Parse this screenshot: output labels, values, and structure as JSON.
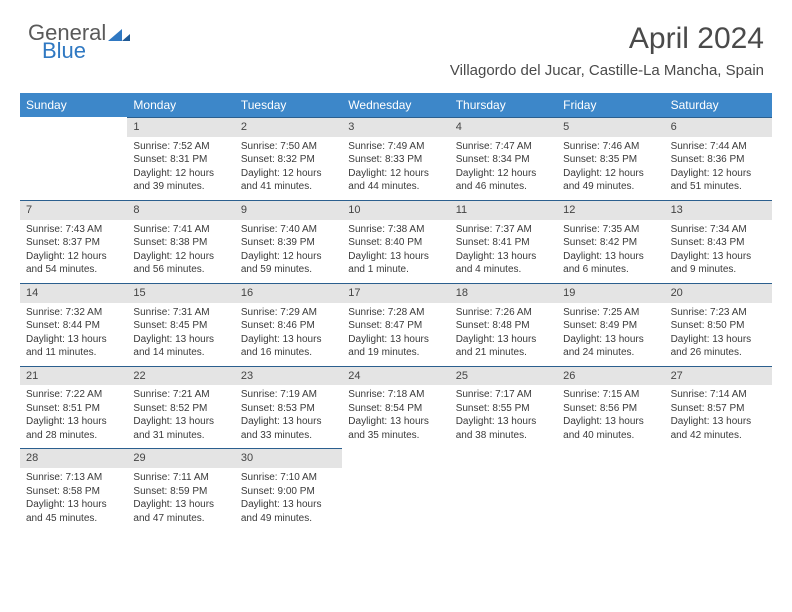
{
  "brand": {
    "general": "General",
    "blue": "Blue"
  },
  "title": "April 2024",
  "location": "Villagordo del Jucar, Castille-La Mancha, Spain",
  "day_names": [
    "Sunday",
    "Monday",
    "Tuesday",
    "Wednesday",
    "Thursday",
    "Friday",
    "Saturday"
  ],
  "colors": {
    "header_bg": "#3d87c9",
    "header_text": "#ffffff",
    "numrow_bg": "#e4e4e4",
    "numrow_border": "#2b5f8e",
    "text": "#3a3a3a",
    "brand_gray": "#5a5a5a",
    "brand_blue": "#2f78c2"
  },
  "typography": {
    "title_fontsize": 30,
    "location_fontsize": 15,
    "dayheader_fontsize": 12,
    "cell_fontsize": 10
  },
  "weeks": [
    [
      {
        "n": "",
        "sr": "",
        "ss": "",
        "dl": ""
      },
      {
        "n": "1",
        "sr": "Sunrise: 7:52 AM",
        "ss": "Sunset: 8:31 PM",
        "dl": "Daylight: 12 hours and 39 minutes."
      },
      {
        "n": "2",
        "sr": "Sunrise: 7:50 AM",
        "ss": "Sunset: 8:32 PM",
        "dl": "Daylight: 12 hours and 41 minutes."
      },
      {
        "n": "3",
        "sr": "Sunrise: 7:49 AM",
        "ss": "Sunset: 8:33 PM",
        "dl": "Daylight: 12 hours and 44 minutes."
      },
      {
        "n": "4",
        "sr": "Sunrise: 7:47 AM",
        "ss": "Sunset: 8:34 PM",
        "dl": "Daylight: 12 hours and 46 minutes."
      },
      {
        "n": "5",
        "sr": "Sunrise: 7:46 AM",
        "ss": "Sunset: 8:35 PM",
        "dl": "Daylight: 12 hours and 49 minutes."
      },
      {
        "n": "6",
        "sr": "Sunrise: 7:44 AM",
        "ss": "Sunset: 8:36 PM",
        "dl": "Daylight: 12 hours and 51 minutes."
      }
    ],
    [
      {
        "n": "7",
        "sr": "Sunrise: 7:43 AM",
        "ss": "Sunset: 8:37 PM",
        "dl": "Daylight: 12 hours and 54 minutes."
      },
      {
        "n": "8",
        "sr": "Sunrise: 7:41 AM",
        "ss": "Sunset: 8:38 PM",
        "dl": "Daylight: 12 hours and 56 minutes."
      },
      {
        "n": "9",
        "sr": "Sunrise: 7:40 AM",
        "ss": "Sunset: 8:39 PM",
        "dl": "Daylight: 12 hours and 59 minutes."
      },
      {
        "n": "10",
        "sr": "Sunrise: 7:38 AM",
        "ss": "Sunset: 8:40 PM",
        "dl": "Daylight: 13 hours and 1 minute."
      },
      {
        "n": "11",
        "sr": "Sunrise: 7:37 AM",
        "ss": "Sunset: 8:41 PM",
        "dl": "Daylight: 13 hours and 4 minutes."
      },
      {
        "n": "12",
        "sr": "Sunrise: 7:35 AM",
        "ss": "Sunset: 8:42 PM",
        "dl": "Daylight: 13 hours and 6 minutes."
      },
      {
        "n": "13",
        "sr": "Sunrise: 7:34 AM",
        "ss": "Sunset: 8:43 PM",
        "dl": "Daylight: 13 hours and 9 minutes."
      }
    ],
    [
      {
        "n": "14",
        "sr": "Sunrise: 7:32 AM",
        "ss": "Sunset: 8:44 PM",
        "dl": "Daylight: 13 hours and 11 minutes."
      },
      {
        "n": "15",
        "sr": "Sunrise: 7:31 AM",
        "ss": "Sunset: 8:45 PM",
        "dl": "Daylight: 13 hours and 14 minutes."
      },
      {
        "n": "16",
        "sr": "Sunrise: 7:29 AM",
        "ss": "Sunset: 8:46 PM",
        "dl": "Daylight: 13 hours and 16 minutes."
      },
      {
        "n": "17",
        "sr": "Sunrise: 7:28 AM",
        "ss": "Sunset: 8:47 PM",
        "dl": "Daylight: 13 hours and 19 minutes."
      },
      {
        "n": "18",
        "sr": "Sunrise: 7:26 AM",
        "ss": "Sunset: 8:48 PM",
        "dl": "Daylight: 13 hours and 21 minutes."
      },
      {
        "n": "19",
        "sr": "Sunrise: 7:25 AM",
        "ss": "Sunset: 8:49 PM",
        "dl": "Daylight: 13 hours and 24 minutes."
      },
      {
        "n": "20",
        "sr": "Sunrise: 7:23 AM",
        "ss": "Sunset: 8:50 PM",
        "dl": "Daylight: 13 hours and 26 minutes."
      }
    ],
    [
      {
        "n": "21",
        "sr": "Sunrise: 7:22 AM",
        "ss": "Sunset: 8:51 PM",
        "dl": "Daylight: 13 hours and 28 minutes."
      },
      {
        "n": "22",
        "sr": "Sunrise: 7:21 AM",
        "ss": "Sunset: 8:52 PM",
        "dl": "Daylight: 13 hours and 31 minutes."
      },
      {
        "n": "23",
        "sr": "Sunrise: 7:19 AM",
        "ss": "Sunset: 8:53 PM",
        "dl": "Daylight: 13 hours and 33 minutes."
      },
      {
        "n": "24",
        "sr": "Sunrise: 7:18 AM",
        "ss": "Sunset: 8:54 PM",
        "dl": "Daylight: 13 hours and 35 minutes."
      },
      {
        "n": "25",
        "sr": "Sunrise: 7:17 AM",
        "ss": "Sunset: 8:55 PM",
        "dl": "Daylight: 13 hours and 38 minutes."
      },
      {
        "n": "26",
        "sr": "Sunrise: 7:15 AM",
        "ss": "Sunset: 8:56 PM",
        "dl": "Daylight: 13 hours and 40 minutes."
      },
      {
        "n": "27",
        "sr": "Sunrise: 7:14 AM",
        "ss": "Sunset: 8:57 PM",
        "dl": "Daylight: 13 hours and 42 minutes."
      }
    ],
    [
      {
        "n": "28",
        "sr": "Sunrise: 7:13 AM",
        "ss": "Sunset: 8:58 PM",
        "dl": "Daylight: 13 hours and 45 minutes."
      },
      {
        "n": "29",
        "sr": "Sunrise: 7:11 AM",
        "ss": "Sunset: 8:59 PM",
        "dl": "Daylight: 13 hours and 47 minutes."
      },
      {
        "n": "30",
        "sr": "Sunrise: 7:10 AM",
        "ss": "Sunset: 9:00 PM",
        "dl": "Daylight: 13 hours and 49 minutes."
      },
      {
        "n": "",
        "sr": "",
        "ss": "",
        "dl": ""
      },
      {
        "n": "",
        "sr": "",
        "ss": "",
        "dl": ""
      },
      {
        "n": "",
        "sr": "",
        "ss": "",
        "dl": ""
      },
      {
        "n": "",
        "sr": "",
        "ss": "",
        "dl": ""
      }
    ]
  ]
}
